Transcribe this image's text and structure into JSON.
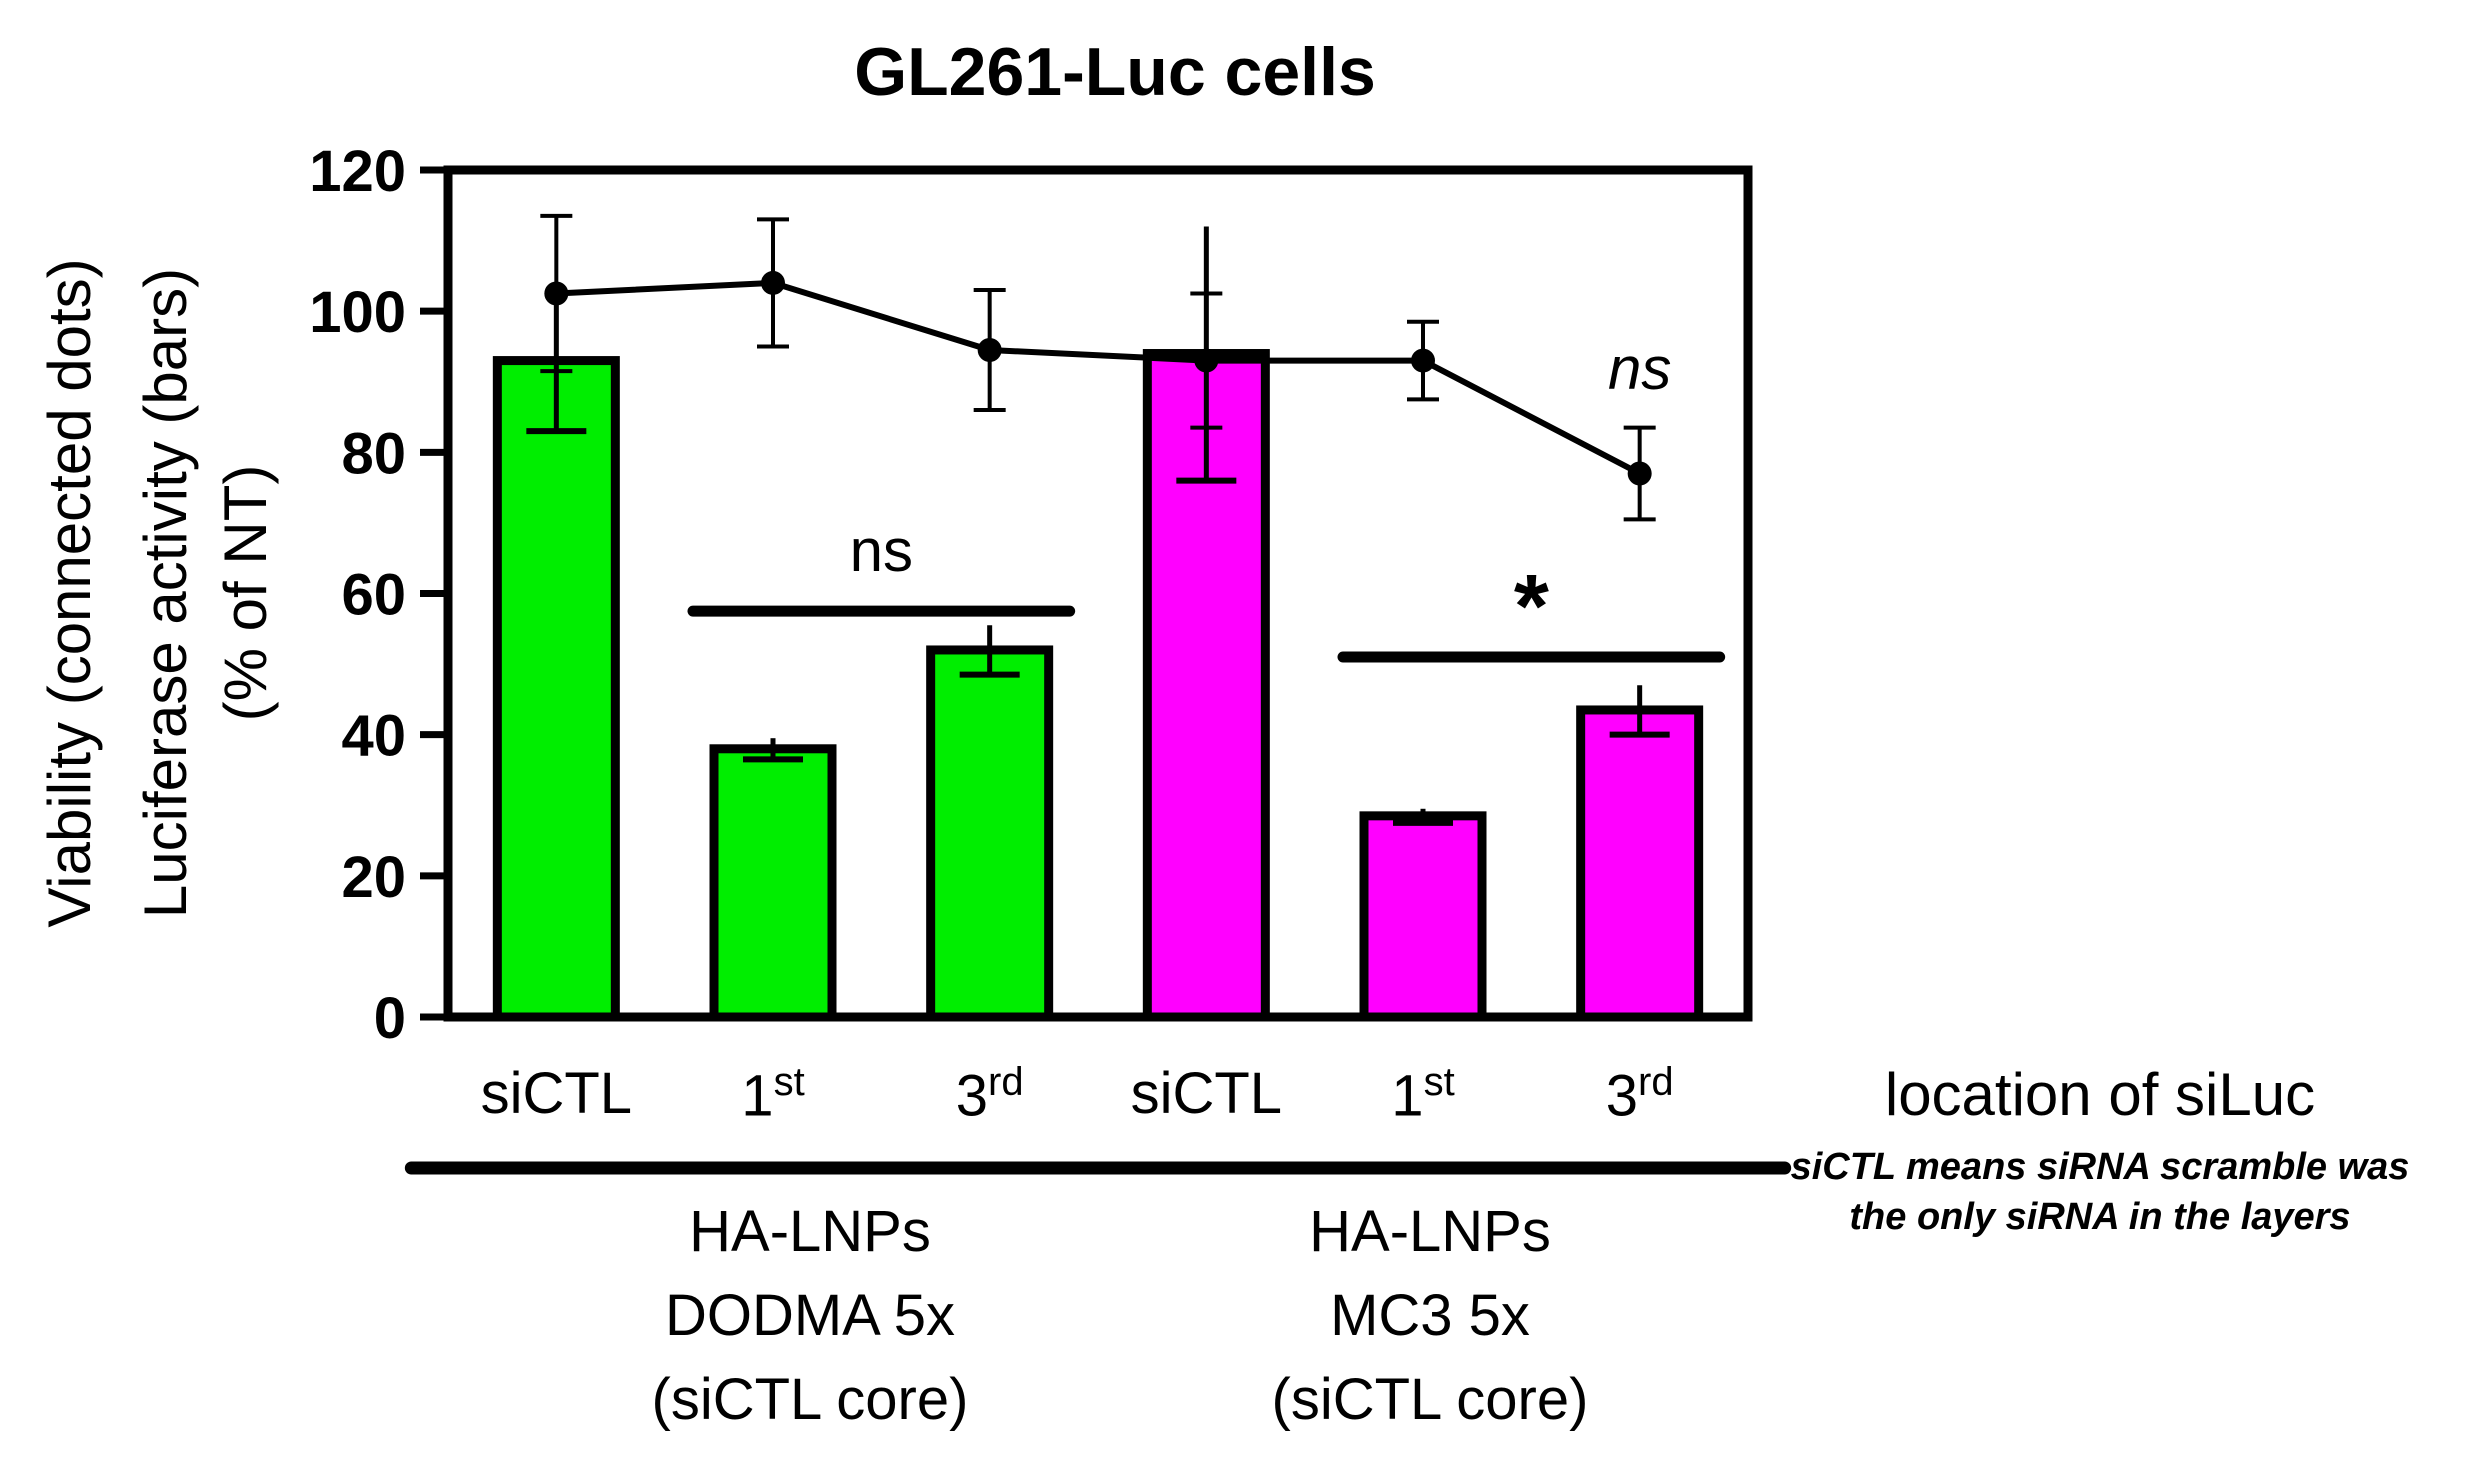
{
  "chart_data": {
    "type": "bar",
    "title": "GL261-Luc cells",
    "ylabel_lines": [
      "Viability (connected dots)",
      "Luciferase activity (bars)",
      "(% of NT)"
    ],
    "ylim": [
      0,
      120
    ],
    "yticks": [
      0,
      20,
      40,
      60,
      80,
      100,
      120
    ],
    "categories": [
      "siCTL",
      "1st",
      "3rd",
      "siCTL",
      "1st",
      "3rd"
    ],
    "category_labels": [
      {
        "base": "siCTL",
        "sup": ""
      },
      {
        "base": "1",
        "sup": "st"
      },
      {
        "base": "3",
        "sup": "rd"
      },
      {
        "base": "siCTL",
        "sup": ""
      },
      {
        "base": "1",
        "sup": "st"
      },
      {
        "base": "3",
        "sup": "rd"
      }
    ],
    "bars": {
      "values": [
        93,
        38,
        52,
        94,
        28.5,
        43.5
      ],
      "error": [
        10,
        1.5,
        3.5,
        18,
        1,
        3.5
      ],
      "colors": [
        "#00ee00",
        "#00ee00",
        "#00ee00",
        "#ff00ff",
        "#ff00ff",
        "#ff00ff"
      ]
    },
    "line": {
      "values": [
        102.5,
        104,
        94.5,
        93,
        93,
        77
      ],
      "error": [
        11,
        9,
        8.5,
        9.5,
        5.5,
        6.5
      ],
      "color": "#000000"
    },
    "significance": [
      {
        "from": 1,
        "to": 2,
        "label": "ns",
        "y": 57.5,
        "italic": false
      },
      {
        "from": 4,
        "to": 5,
        "label": "*",
        "y": 51,
        "italic": false
      },
      {
        "at": 5,
        "label": "ns",
        "y": 89,
        "italic": true
      }
    ],
    "groups": [
      {
        "lines": [
          "HA-LNPs",
          "DODMA 5x",
          "(siCTL core)"
        ],
        "from": 0,
        "to": 2
      },
      {
        "lines": [
          "HA-LNPs",
          "MC3 5x",
          "(siCTL core)"
        ],
        "from": 3,
        "to": 5
      }
    ],
    "xlabel": "location of siLuc",
    "note_lines": [
      "siCTL means siRNA scramble was",
      "the only siRNA in the layers"
    ]
  }
}
